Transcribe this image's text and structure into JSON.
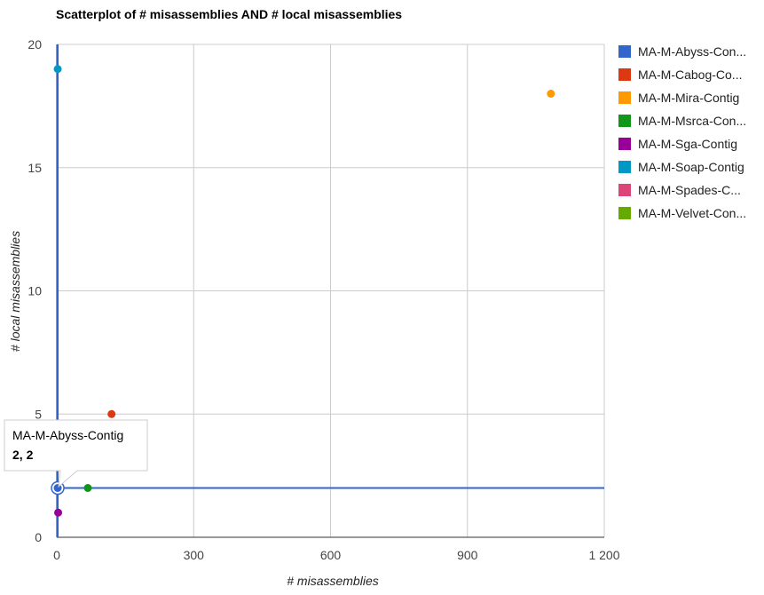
{
  "chart_data": {
    "type": "scatter",
    "title": "Scatterplot of # misassemblies AND # local misassemblies",
    "xlabel": "# misassemblies",
    "ylabel": "# local misassemblies",
    "xlim": [
      0,
      1200
    ],
    "ylim": [
      0,
      20
    ],
    "xticks": [
      0,
      300,
      600,
      900,
      1200
    ],
    "xtick_labels": [
      "0",
      "300",
      "600",
      "900",
      "1 200"
    ],
    "yticks": [
      0,
      5,
      10,
      15,
      20
    ],
    "ytick_labels": [
      "0",
      "5",
      "10",
      "15",
      "20"
    ],
    "grid": true,
    "legend_position": "right",
    "series": [
      {
        "name": "MA-M-Abyss-Contig",
        "legend_label": "MA-M-Abyss-Con...",
        "color": "#3366cc",
        "x": [
          2
        ],
        "y": [
          2
        ]
      },
      {
        "name": "MA-M-Cabog-Contig",
        "legend_label": "MA-M-Cabog-Co...",
        "color": "#dc3912",
        "x": [
          120
        ],
        "y": [
          5
        ]
      },
      {
        "name": "MA-M-Mira-Contig",
        "legend_label": "MA-M-Mira-Contig",
        "color": "#ff9900",
        "x": [
          1083
        ],
        "y": [
          18
        ]
      },
      {
        "name": "MA-M-Msrca-Contig",
        "legend_label": "MA-M-Msrca-Con...",
        "color": "#109618",
        "x": [
          68
        ],
        "y": [
          2
        ]
      },
      {
        "name": "MA-M-Sga-Contig",
        "legend_label": "MA-M-Sga-Contig",
        "color": "#990099",
        "x": [
          3
        ],
        "y": [
          1
        ]
      },
      {
        "name": "MA-M-Soap-Contig",
        "legend_label": "MA-M-Soap-Contig",
        "color": "#0099c6",
        "x": [
          2
        ],
        "y": [
          19
        ]
      },
      {
        "name": "MA-M-Spades-Contig",
        "legend_label": "MA-M-Spades-C...",
        "color": "#dd4477",
        "x": [],
        "y": []
      },
      {
        "name": "MA-M-Velvet-Contig",
        "legend_label": "MA-M-Velvet-Con...",
        "color": "#66aa00",
        "x": [],
        "y": []
      }
    ],
    "tooltip": {
      "series": "MA-M-Abyss-Contig",
      "value_text": "2, 2"
    }
  }
}
